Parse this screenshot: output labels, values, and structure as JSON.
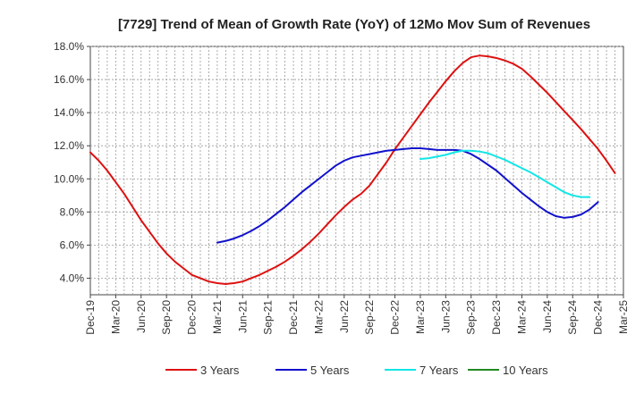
{
  "chart_data": {
    "type": "line",
    "title": "[7729]  Trend of Mean of Growth Rate (YoY) of 12Mo Mov Sum of Revenues",
    "xlabel": "",
    "ylabel": "",
    "ylim": [
      3.0,
      18.0
    ],
    "y_ticks": [
      4.0,
      6.0,
      8.0,
      10.0,
      12.0,
      14.0,
      16.0,
      18.0
    ],
    "y_tick_labels": [
      "4.0%",
      "6.0%",
      "8.0%",
      "10.0%",
      "12.0%",
      "14.0%",
      "16.0%",
      "18.0%"
    ],
    "x_tick_labels": [
      "Dec-19",
      "Mar-20",
      "Jun-20",
      "Sep-20",
      "Dec-20",
      "Mar-21",
      "Jun-21",
      "Sep-21",
      "Dec-21",
      "Mar-22",
      "Jun-22",
      "Sep-22",
      "Dec-22",
      "Mar-23",
      "Jun-23",
      "Sep-23",
      "Dec-23",
      "Mar-24",
      "Jun-24",
      "Sep-24",
      "Dec-24",
      "Mar-25"
    ],
    "x_months_start": "Dec-19",
    "x_months_count": 64,
    "grid": true,
    "legend_position": "bottom",
    "series": [
      {
        "name": "3 Years",
        "color": "#dd1111",
        "start_index": 0,
        "values": [
          11.6,
          11.1,
          10.5,
          9.8,
          9.1,
          8.3,
          7.5,
          6.8,
          6.1,
          5.5,
          5.0,
          4.6,
          4.2,
          4.0,
          3.8,
          3.7,
          3.65,
          3.7,
          3.8,
          4.0,
          4.2,
          4.45,
          4.7,
          5.0,
          5.35,
          5.75,
          6.2,
          6.7,
          7.25,
          7.8,
          8.3,
          8.75,
          9.1,
          9.6,
          10.3,
          11.0,
          11.8,
          12.5,
          13.2,
          13.9,
          14.6,
          15.25,
          15.9,
          16.5,
          17.0,
          17.35,
          17.45,
          17.4,
          17.3,
          17.15,
          16.95,
          16.65,
          16.2,
          15.7,
          15.2,
          14.65,
          14.1,
          13.55,
          13.0,
          12.4,
          11.8,
          11.1,
          10.35
        ]
      },
      {
        "name": "5 Years",
        "color": "#1111cc",
        "start_index": 15,
        "values": [
          6.15,
          6.25,
          6.4,
          6.6,
          6.85,
          7.15,
          7.5,
          7.9,
          8.3,
          8.75,
          9.2,
          9.6,
          10.0,
          10.4,
          10.8,
          11.1,
          11.3,
          11.4,
          11.5,
          11.6,
          11.7,
          11.75,
          11.8,
          11.85,
          11.85,
          11.8,
          11.75,
          11.75,
          11.75,
          11.7,
          11.5,
          11.2,
          10.85,
          10.5,
          10.05,
          9.6,
          9.15,
          8.75,
          8.35,
          8.0,
          7.75,
          7.65,
          7.7,
          7.85,
          8.15,
          8.6
        ]
      },
      {
        "name": "7 Years",
        "color": "#11e6e6",
        "start_index": 39,
        "values": [
          11.2,
          11.25,
          11.35,
          11.45,
          11.6,
          11.7,
          11.7,
          11.65,
          11.55,
          11.35,
          11.15,
          10.9,
          10.65,
          10.4,
          10.1,
          9.8,
          9.5,
          9.2,
          9.0,
          8.9,
          8.9
        ]
      },
      {
        "name": "10 Years",
        "color": "#228822",
        "start_index": 0,
        "values": []
      }
    ]
  }
}
